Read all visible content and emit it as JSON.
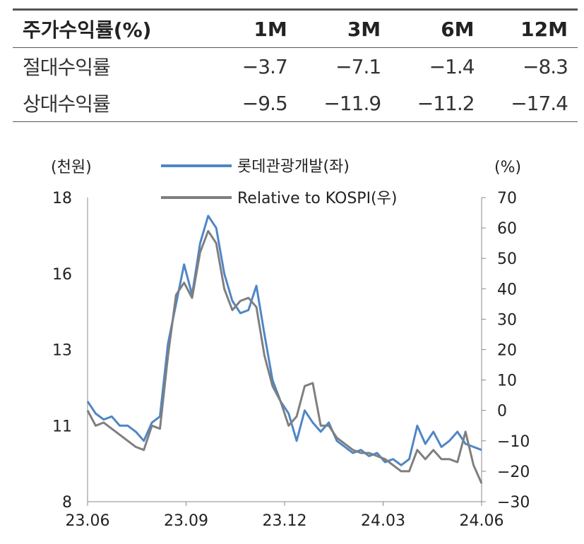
{
  "table": {
    "header": [
      "주가수익률(%)",
      "1M",
      "3M",
      "6M",
      "12M"
    ],
    "rows": [
      {
        "label": "절대수익률",
        "values": [
          "−3.7",
          "−7.1",
          "−1.4",
          "−8.3"
        ]
      },
      {
        "label": "상대수익률",
        "values": [
          "−9.5",
          "−11.9",
          "−11.2",
          "−17.4"
        ]
      }
    ]
  },
  "chart_data": {
    "type": "line",
    "left_axis_unit": "(천원)",
    "right_axis_unit": "(%)",
    "left_ticks": [
      "18",
      "16",
      "13",
      "11",
      "8"
    ],
    "right_ticks": [
      "70",
      "60",
      "50",
      "40",
      "30",
      "20",
      "10",
      "0",
      "−10",
      "−20",
      "−30"
    ],
    "x_ticks": [
      "23.06",
      "23.09",
      "23.12",
      "24.03",
      "24.06"
    ],
    "ylim_left": [
      8,
      18
    ],
    "ylim_right": [
      -30,
      70
    ],
    "colors": {
      "series1": "#4f86c6",
      "series2": "#7f7f7f"
    },
    "series": [
      {
        "name": "롯데관광개발(좌)",
        "axis": "left",
        "x": [
          "23.06",
          "23.06",
          "23.06",
          "23.06",
          "23.06",
          "23.07",
          "23.07",
          "23.07",
          "23.07",
          "23.08",
          "23.08",
          "23.08",
          "23.08",
          "23.08",
          "23.08",
          "23.08",
          "23.08",
          "23.08",
          "23.09",
          "23.09",
          "23.09",
          "23.09",
          "23.10",
          "23.10",
          "23.10",
          "23.10",
          "23.10",
          "23.10",
          "23.11",
          "23.11",
          "23.11",
          "23.12",
          "23.12",
          "23.12",
          "24.01",
          "24.01",
          "24.01",
          "24.02",
          "24.02",
          "24.02",
          "24.03",
          "24.03",
          "24.03",
          "24.04",
          "24.04",
          "24.04",
          "24.05",
          "24.05",
          "24.06",
          "24.06"
        ],
        "values": [
          11.3,
          10.9,
          10.7,
          10.8,
          10.5,
          10.5,
          10.3,
          10.0,
          10.6,
          10.8,
          13.2,
          14.5,
          15.8,
          14.8,
          16.5,
          17.4,
          17.0,
          15.5,
          14.6,
          14.2,
          14.3,
          15.1,
          13.5,
          12.0,
          11.3,
          10.9,
          10.0,
          11.0,
          10.6,
          10.3,
          10.6,
          10.0,
          9.8,
          9.6,
          9.7,
          9.5,
          9.6,
          9.3,
          9.4,
          9.2,
          9.4,
          10.5,
          9.9,
          10.3,
          9.8,
          10.0,
          10.3,
          9.9,
          9.8,
          9.7
        ]
      },
      {
        "name": "Relative to KOSPI(우)",
        "axis": "right",
        "x": [
          "23.06",
          "23.06",
          "23.06",
          "23.06",
          "23.06",
          "23.07",
          "23.07",
          "23.07",
          "23.07",
          "23.08",
          "23.08",
          "23.08",
          "23.08",
          "23.08",
          "23.08",
          "23.08",
          "23.08",
          "23.08",
          "23.09",
          "23.09",
          "23.09",
          "23.09",
          "23.10",
          "23.10",
          "23.10",
          "23.10",
          "23.10",
          "23.10",
          "23.11",
          "23.11",
          "23.11",
          "23.12",
          "23.12",
          "23.12",
          "24.01",
          "24.01",
          "24.01",
          "24.02",
          "24.02",
          "24.02",
          "24.03",
          "24.03",
          "24.03",
          "24.04",
          "24.04",
          "24.04",
          "24.05",
          "24.05",
          "24.06",
          "24.06"
        ],
        "values": [
          0,
          -5,
          -4,
          -6,
          -8,
          -10,
          -12,
          -13,
          -5,
          -6,
          18,
          38,
          42,
          37,
          52,
          59,
          55,
          40,
          33,
          36,
          37,
          34,
          18,
          8,
          3,
          -5,
          -2,
          8,
          9,
          -5,
          -5,
          -9,
          -11,
          -13,
          -14,
          -14,
          -15,
          -16,
          -18,
          -20,
          -20,
          -13,
          -16,
          -13,
          -16,
          -16,
          -17,
          -7,
          -18,
          -24
        ]
      }
    ]
  }
}
